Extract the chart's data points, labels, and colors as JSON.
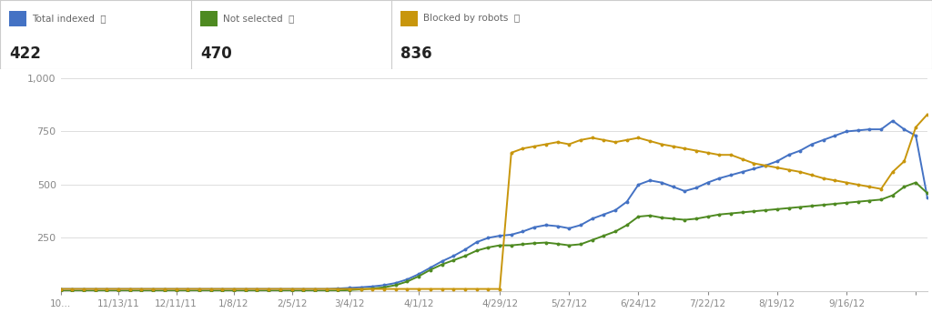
{
  "title_panel": {
    "series": [
      {
        "label": "Total indexed",
        "color": "#4472C4",
        "value": "422"
      },
      {
        "label": "Not selected",
        "color": "#4E8A21",
        "value": "470"
      },
      {
        "label": "Blocked by robots",
        "color": "#C8960C",
        "value": "836"
      }
    ]
  },
  "x_labels": [
    "10...",
    "11/13/11",
    "12/11/11",
    "1/8/12",
    "2/5/12",
    "3/4/12",
    "4/1/12",
    "4/29/12",
    "5/27/12",
    "6/24/12",
    "7/22/12",
    "8/19/12",
    "9/16/12"
  ],
  "ylim": [
    0,
    1000
  ],
  "yticks": [
    250,
    500,
    750,
    1000
  ],
  "ytick_labels": [
    "250",
    "500",
    "750",
    "1,000"
  ],
  "background_color": "#ffffff",
  "grid_color": "#dddddd",
  "blue_color": "#4472C4",
  "green_color": "#4E8A21",
  "gold_color": "#C8960C",
  "blue_y": [
    10,
    10,
    10,
    10,
    10,
    10,
    10,
    10,
    10,
    10,
    10,
    10,
    10,
    10,
    10,
    10,
    10,
    10,
    10,
    10,
    10,
    10,
    10,
    10,
    12,
    15,
    18,
    22,
    28,
    38,
    55,
    80,
    110,
    140,
    165,
    195,
    230,
    250,
    260,
    265,
    280,
    300,
    310,
    305,
    295,
    310,
    340,
    360,
    380,
    420,
    500,
    520,
    510,
    490,
    470,
    485,
    510,
    530,
    545,
    560,
    575,
    590,
    610,
    640,
    660,
    690,
    710,
    730,
    750,
    755,
    760,
    760,
    800,
    760,
    730,
    440
  ],
  "green_y": [
    0,
    0,
    0,
    0,
    0,
    0,
    0,
    0,
    0,
    0,
    0,
    0,
    0,
    0,
    0,
    0,
    0,
    0,
    0,
    0,
    0,
    0,
    0,
    0,
    2,
    5,
    8,
    12,
    18,
    28,
    45,
    70,
    100,
    125,
    145,
    165,
    190,
    205,
    215,
    215,
    220,
    225,
    228,
    222,
    215,
    220,
    240,
    260,
    280,
    310,
    350,
    355,
    345,
    340,
    335,
    340,
    350,
    360,
    365,
    370,
    375,
    380,
    385,
    390,
    395,
    400,
    405,
    410,
    415,
    420,
    425,
    430,
    450,
    490,
    510,
    460
  ],
  "gold_y": [
    10,
    10,
    10,
    10,
    10,
    10,
    10,
    10,
    10,
    10,
    10,
    10,
    10,
    10,
    10,
    10,
    10,
    10,
    10,
    10,
    10,
    10,
    10,
    10,
    10,
    10,
    10,
    10,
    10,
    10,
    10,
    10,
    10,
    10,
    10,
    10,
    10,
    10,
    10,
    650,
    670,
    680,
    690,
    700,
    690,
    710,
    720,
    710,
    700,
    710,
    720,
    705,
    690,
    680,
    670,
    660,
    650,
    640,
    640,
    620,
    600,
    590,
    580,
    570,
    560,
    545,
    530,
    520,
    510,
    500,
    490,
    480,
    560,
    610,
    770,
    830
  ]
}
